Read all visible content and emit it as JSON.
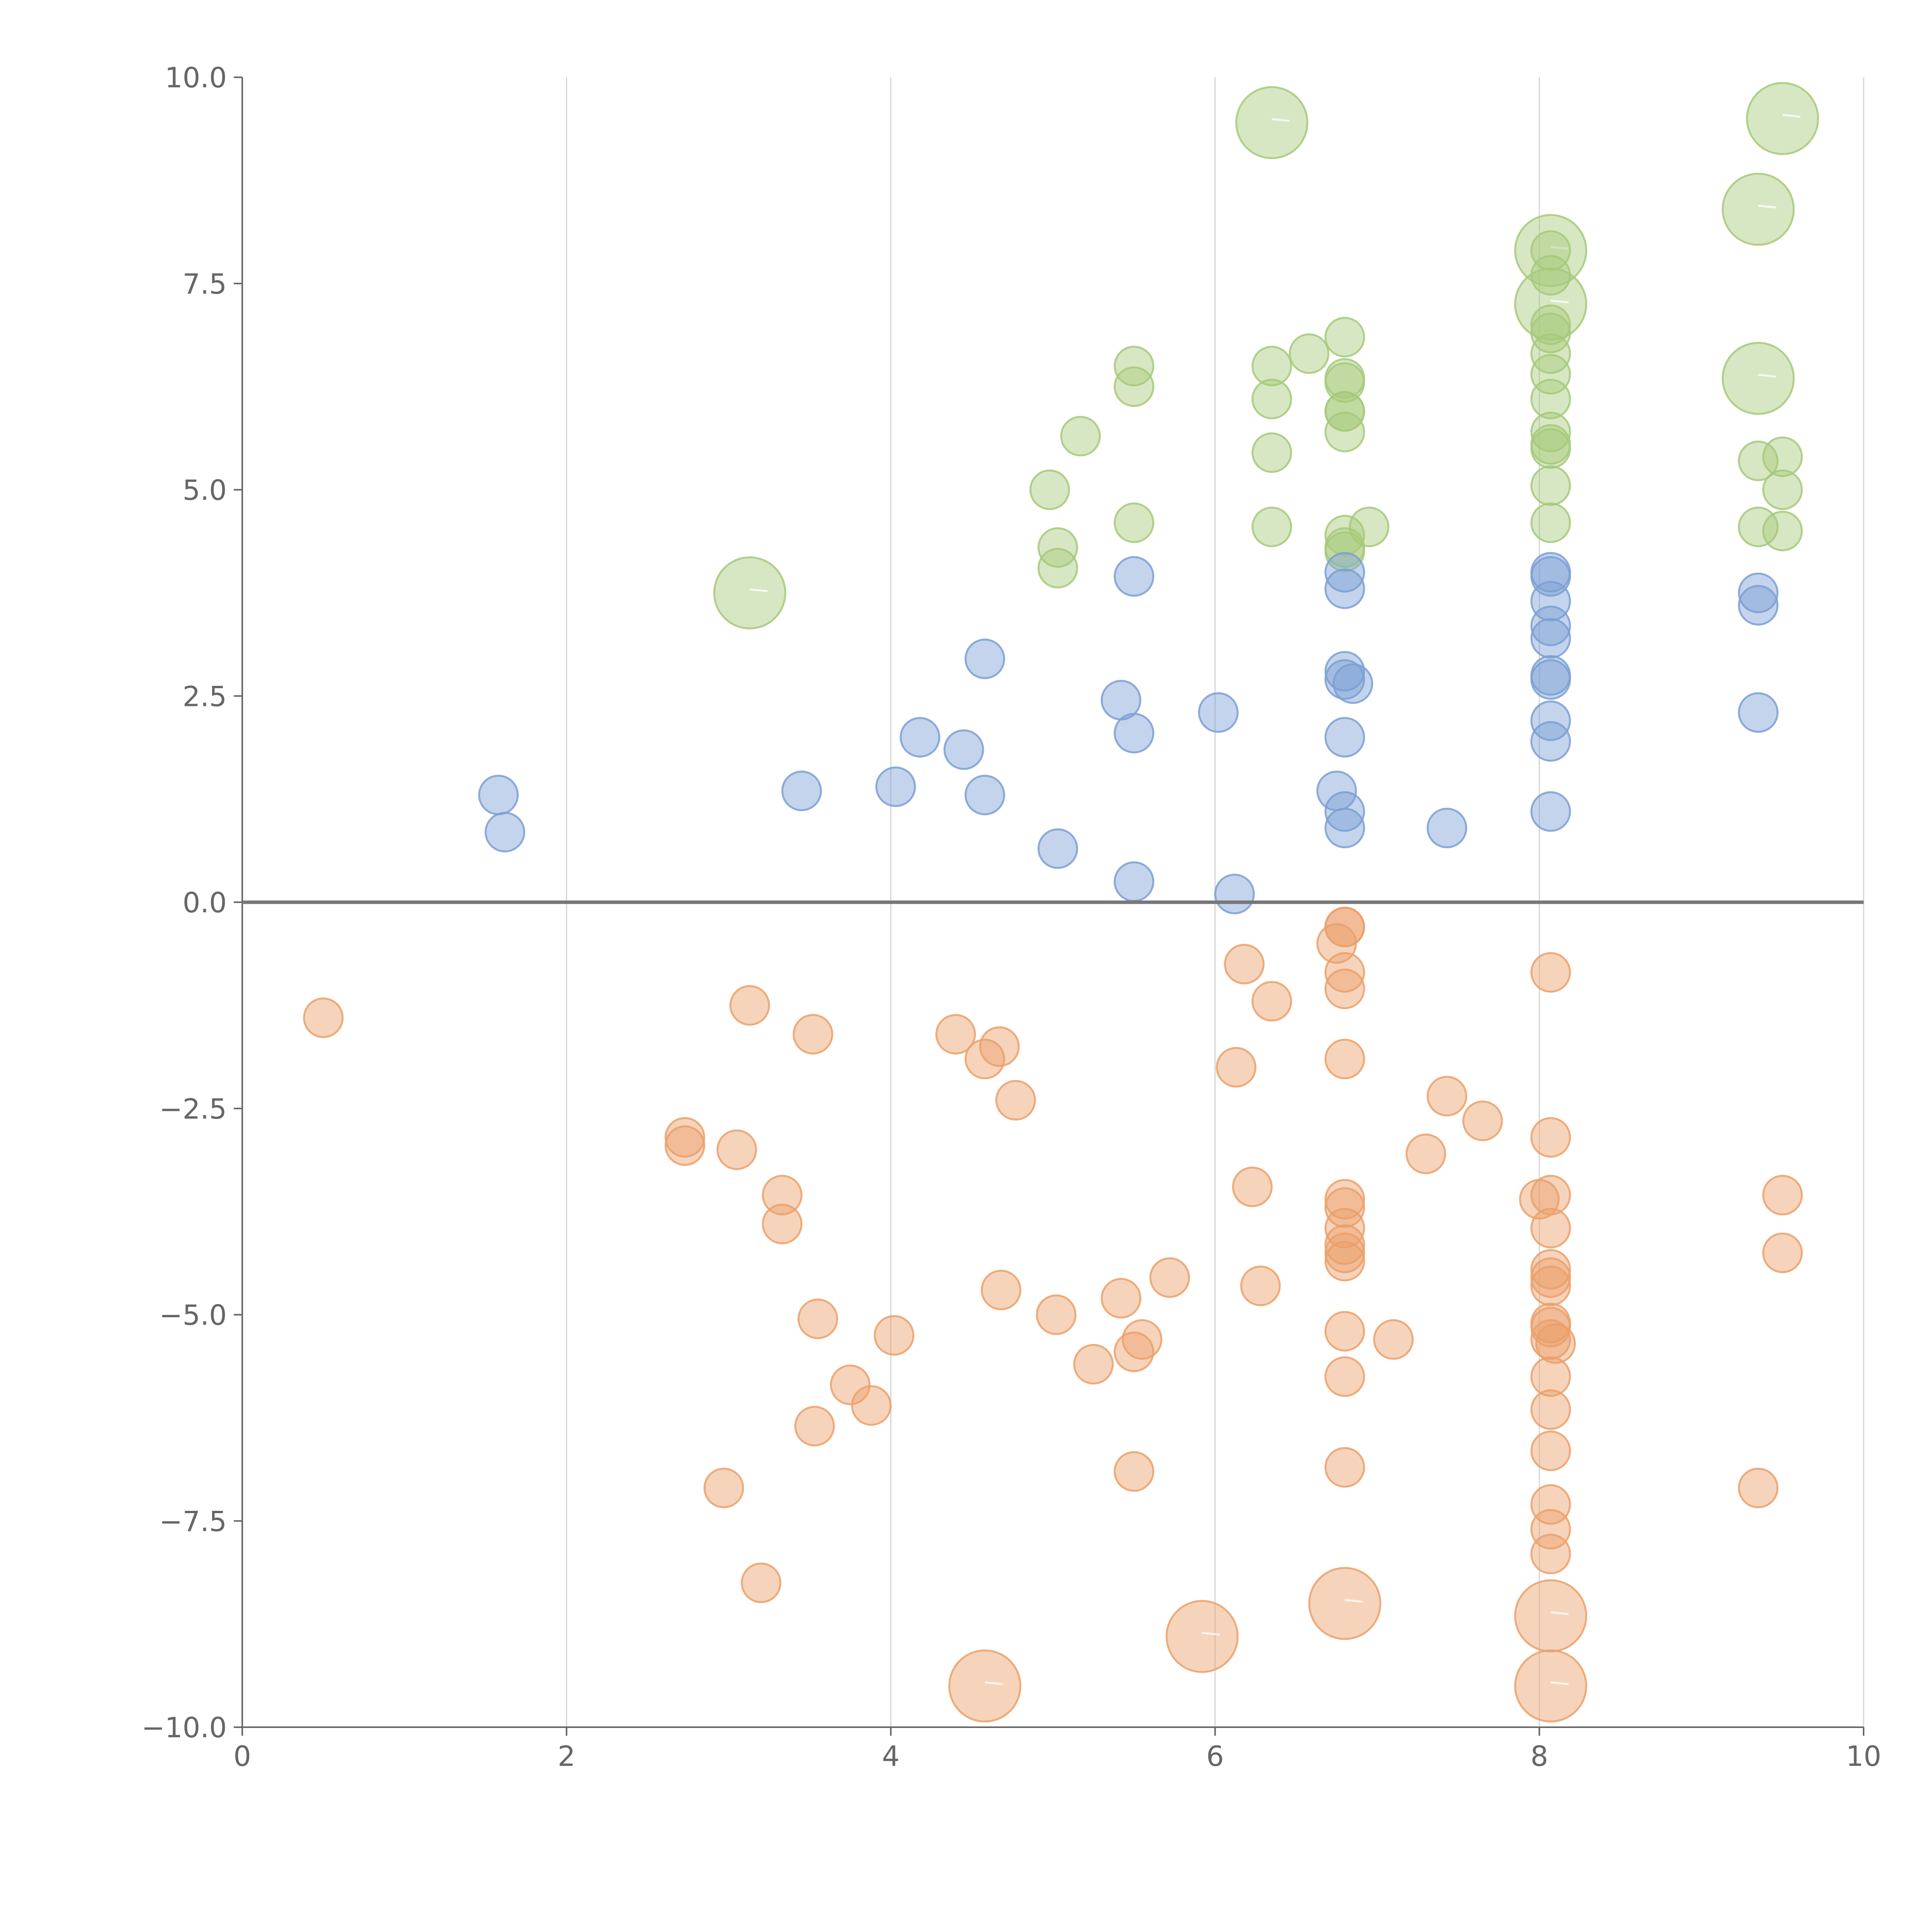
{
  "chart_data": {
    "type": "scatter",
    "title": "",
    "xlabel": "",
    "ylabel": "",
    "xlim": [
      0,
      10
    ],
    "ylim": [
      -10,
      10
    ],
    "grid": "vertical",
    "legend": "none",
    "x_ticks": [
      {
        "value": 0,
        "label": "0"
      },
      {
        "value": 2,
        "label": "2"
      },
      {
        "value": 4,
        "label": "4"
      },
      {
        "value": 6,
        "label": "6"
      },
      {
        "value": 8,
        "label": "8"
      },
      {
        "value": 10,
        "label": "10"
      }
    ],
    "y_ticks": [
      {
        "value": 10,
        "label": "10.0"
      },
      {
        "value": 7.5,
        "label": "7.5"
      },
      {
        "value": 5,
        "label": "5.0"
      },
      {
        "value": 2.5,
        "label": "2.5"
      },
      {
        "value": 0,
        "label": "0.0"
      },
      {
        "value": -2.5,
        "label": "−2.5"
      },
      {
        "value": -5,
        "label": "−5.0"
      },
      {
        "value": -7.5,
        "label": "−7.5"
      },
      {
        "value": -10,
        "label": "−10.0"
      }
    ],
    "series": [
      {
        "name": "green",
        "color": "#a6c97a",
        "points": [
          [
            6.35,
            9.45,
            2
          ],
          [
            9.5,
            9.5,
            2
          ],
          [
            9.35,
            8.4,
            2
          ],
          [
            8.07,
            7.9,
            2
          ],
          [
            8.07,
            7.25,
            2
          ],
          [
            9.35,
            6.35,
            2
          ],
          [
            3.13,
            3.75,
            2
          ],
          [
            8.07,
            7.9,
            1
          ],
          [
            8.07,
            7.6,
            1
          ],
          [
            8.07,
            7.0,
            1
          ],
          [
            8.07,
            6.9,
            1
          ],
          [
            8.07,
            6.65,
            1
          ],
          [
            8.07,
            6.4,
            1
          ],
          [
            8.07,
            6.1,
            1
          ],
          [
            8.07,
            5.7,
            1
          ],
          [
            8.07,
            5.55,
            1
          ],
          [
            8.07,
            5.5,
            1
          ],
          [
            8.07,
            5.05,
            1
          ],
          [
            8.07,
            4.6,
            1
          ],
          [
            6.8,
            6.85,
            1
          ],
          [
            6.8,
            6.35,
            1
          ],
          [
            6.8,
            6.3,
            1
          ],
          [
            6.8,
            5.95,
            1
          ],
          [
            6.8,
            5.95,
            1
          ],
          [
            6.8,
            5.7,
            1
          ],
          [
            6.8,
            4.45,
            1
          ],
          [
            6.8,
            4.3,
            1
          ],
          [
            6.8,
            4.25,
            1
          ],
          [
            6.95,
            4.55,
            1
          ],
          [
            6.58,
            6.65,
            1
          ],
          [
            6.35,
            6.5,
            1
          ],
          [
            6.35,
            6.1,
            1
          ],
          [
            6.35,
            5.45,
            1
          ],
          [
            6.35,
            4.55,
            1
          ],
          [
            5.5,
            6.5,
            1
          ],
          [
            5.5,
            6.25,
            1
          ],
          [
            5.5,
            4.6,
            1
          ],
          [
            5.17,
            5.65,
            1
          ],
          [
            4.98,
            5.0,
            1
          ],
          [
            5.03,
            4.3,
            1
          ],
          [
            5.03,
            4.05,
            1
          ],
          [
            9.35,
            5.35,
            1
          ],
          [
            9.5,
            5.4,
            1
          ],
          [
            9.5,
            5.0,
            1
          ],
          [
            9.35,
            4.55,
            1
          ],
          [
            9.5,
            4.5,
            1
          ]
        ]
      },
      {
        "name": "blue",
        "color": "#7b9fd4",
        "points": [
          [
            1.58,
            1.3,
            1
          ],
          [
            1.62,
            0.85,
            1
          ],
          [
            3.45,
            1.35,
            1
          ],
          [
            4.03,
            1.4,
            1
          ],
          [
            4.18,
            2.0,
            1
          ],
          [
            4.45,
            1.85,
            1
          ],
          [
            4.58,
            2.95,
            1
          ],
          [
            4.58,
            1.3,
            1
          ],
          [
            5.03,
            0.65,
            1
          ],
          [
            5.42,
            2.45,
            1
          ],
          [
            5.5,
            2.05,
            1
          ],
          [
            5.5,
            3.95,
            1
          ],
          [
            5.5,
            0.25,
            1
          ],
          [
            6.02,
            2.3,
            1
          ],
          [
            6.12,
            0.1,
            1
          ],
          [
            6.8,
            4.0,
            1
          ],
          [
            6.8,
            3.8,
            1
          ],
          [
            6.8,
            2.8,
            1
          ],
          [
            6.8,
            2.7,
            1
          ],
          [
            6.85,
            2.65,
            1
          ],
          [
            6.8,
            2.0,
            1
          ],
          [
            6.75,
            1.35,
            1
          ],
          [
            6.8,
            1.1,
            1
          ],
          [
            6.8,
            0.9,
            1
          ],
          [
            7.43,
            0.9,
            1
          ],
          [
            8.07,
            4.0,
            1
          ],
          [
            8.07,
            3.95,
            1
          ],
          [
            8.07,
            3.65,
            1
          ],
          [
            8.07,
            3.35,
            1
          ],
          [
            8.07,
            3.2,
            1
          ],
          [
            8.07,
            2.75,
            1
          ],
          [
            8.07,
            2.7,
            1
          ],
          [
            8.07,
            2.2,
            1
          ],
          [
            8.07,
            1.95,
            1
          ],
          [
            8.07,
            1.1,
            1
          ],
          [
            9.35,
            3.75,
            1
          ],
          [
            9.35,
            3.6,
            1
          ],
          [
            9.35,
            2.3,
            1
          ]
        ]
      },
      {
        "name": "orange",
        "color": "#eba06a",
        "points": [
          [
            0.5,
            -1.4,
            1
          ],
          [
            2.73,
            -2.85,
            1
          ],
          [
            2.73,
            -2.95,
            1
          ],
          [
            3.05,
            -3.0,
            1
          ],
          [
            3.13,
            -1.25,
            1
          ],
          [
            3.33,
            -3.55,
            1
          ],
          [
            3.33,
            -3.9,
            1
          ],
          [
            3.52,
            -1.6,
            1
          ],
          [
            3.55,
            -5.05,
            1
          ],
          [
            3.53,
            -6.35,
            1
          ],
          [
            2.97,
            -7.1,
            1
          ],
          [
            3.2,
            -8.25,
            1
          ],
          [
            3.75,
            -5.85,
            1
          ],
          [
            3.88,
            -6.1,
            1
          ],
          [
            4.02,
            -5.25,
            1
          ],
          [
            4.4,
            -1.6,
            1
          ],
          [
            4.58,
            -1.9,
            1
          ],
          [
            4.67,
            -1.75,
            1
          ],
          [
            4.77,
            -2.4,
            1
          ],
          [
            4.68,
            -4.7,
            1
          ],
          [
            5.02,
            -5.0,
            1
          ],
          [
            5.25,
            -5.6,
            1
          ],
          [
            5.42,
            -4.8,
            1
          ],
          [
            5.55,
            -5.3,
            1
          ],
          [
            5.5,
            -5.45,
            1
          ],
          [
            5.72,
            -4.55,
            1
          ],
          [
            5.5,
            -6.9,
            1
          ],
          [
            6.18,
            -0.75,
            1
          ],
          [
            6.35,
            -1.2,
            1
          ],
          [
            6.13,
            -2.0,
            1
          ],
          [
            6.23,
            -3.45,
            1
          ],
          [
            6.28,
            -4.65,
            1
          ],
          [
            6.8,
            -0.3,
            1
          ],
          [
            6.8,
            -0.3,
            1
          ],
          [
            6.75,
            -0.5,
            1
          ],
          [
            6.8,
            -0.85,
            1
          ],
          [
            6.8,
            -1.05,
            1
          ],
          [
            6.8,
            -1.9,
            1
          ],
          [
            6.8,
            -3.6,
            1
          ],
          [
            6.8,
            -3.7,
            1
          ],
          [
            6.8,
            -3.95,
            1
          ],
          [
            6.8,
            -4.15,
            1
          ],
          [
            6.8,
            -4.25,
            1
          ],
          [
            6.8,
            -4.35,
            1
          ],
          [
            6.8,
            -5.2,
            1
          ],
          [
            6.8,
            -5.75,
            1
          ],
          [
            6.8,
            -6.85,
            1
          ],
          [
            7.1,
            -5.3,
            1
          ],
          [
            7.3,
            -3.05,
            1
          ],
          [
            7.43,
            -2.35,
            1
          ],
          [
            7.65,
            -2.65,
            1
          ],
          [
            8.07,
            -0.85,
            1
          ],
          [
            8.07,
            -2.85,
            1
          ],
          [
            8.0,
            -3.6,
            1
          ],
          [
            8.07,
            -3.55,
            1
          ],
          [
            8.07,
            -3.95,
            1
          ],
          [
            8.07,
            -4.45,
            1
          ],
          [
            8.07,
            -4.55,
            1
          ],
          [
            8.07,
            -4.65,
            1
          ],
          [
            8.07,
            -5.1,
            1
          ],
          [
            8.07,
            -5.15,
            1
          ],
          [
            8.07,
            -5.3,
            1
          ],
          [
            8.1,
            -5.35,
            1
          ],
          [
            8.07,
            -5.75,
            1
          ],
          [
            8.07,
            -6.15,
            1
          ],
          [
            8.07,
            -6.65,
            1
          ],
          [
            8.07,
            -7.3,
            1
          ],
          [
            8.07,
            -7.6,
            1
          ],
          [
            8.07,
            -7.9,
            1
          ],
          [
            9.5,
            -3.55,
            1
          ],
          [
            9.5,
            -4.25,
            1
          ],
          [
            9.35,
            -7.1,
            1
          ],
          [
            4.58,
            -9.5,
            2
          ],
          [
            5.92,
            -8.9,
            2
          ],
          [
            6.8,
            -8.5,
            2
          ],
          [
            8.07,
            -8.65,
            2
          ],
          [
            8.07,
            -9.5,
            2
          ]
        ]
      }
    ]
  }
}
